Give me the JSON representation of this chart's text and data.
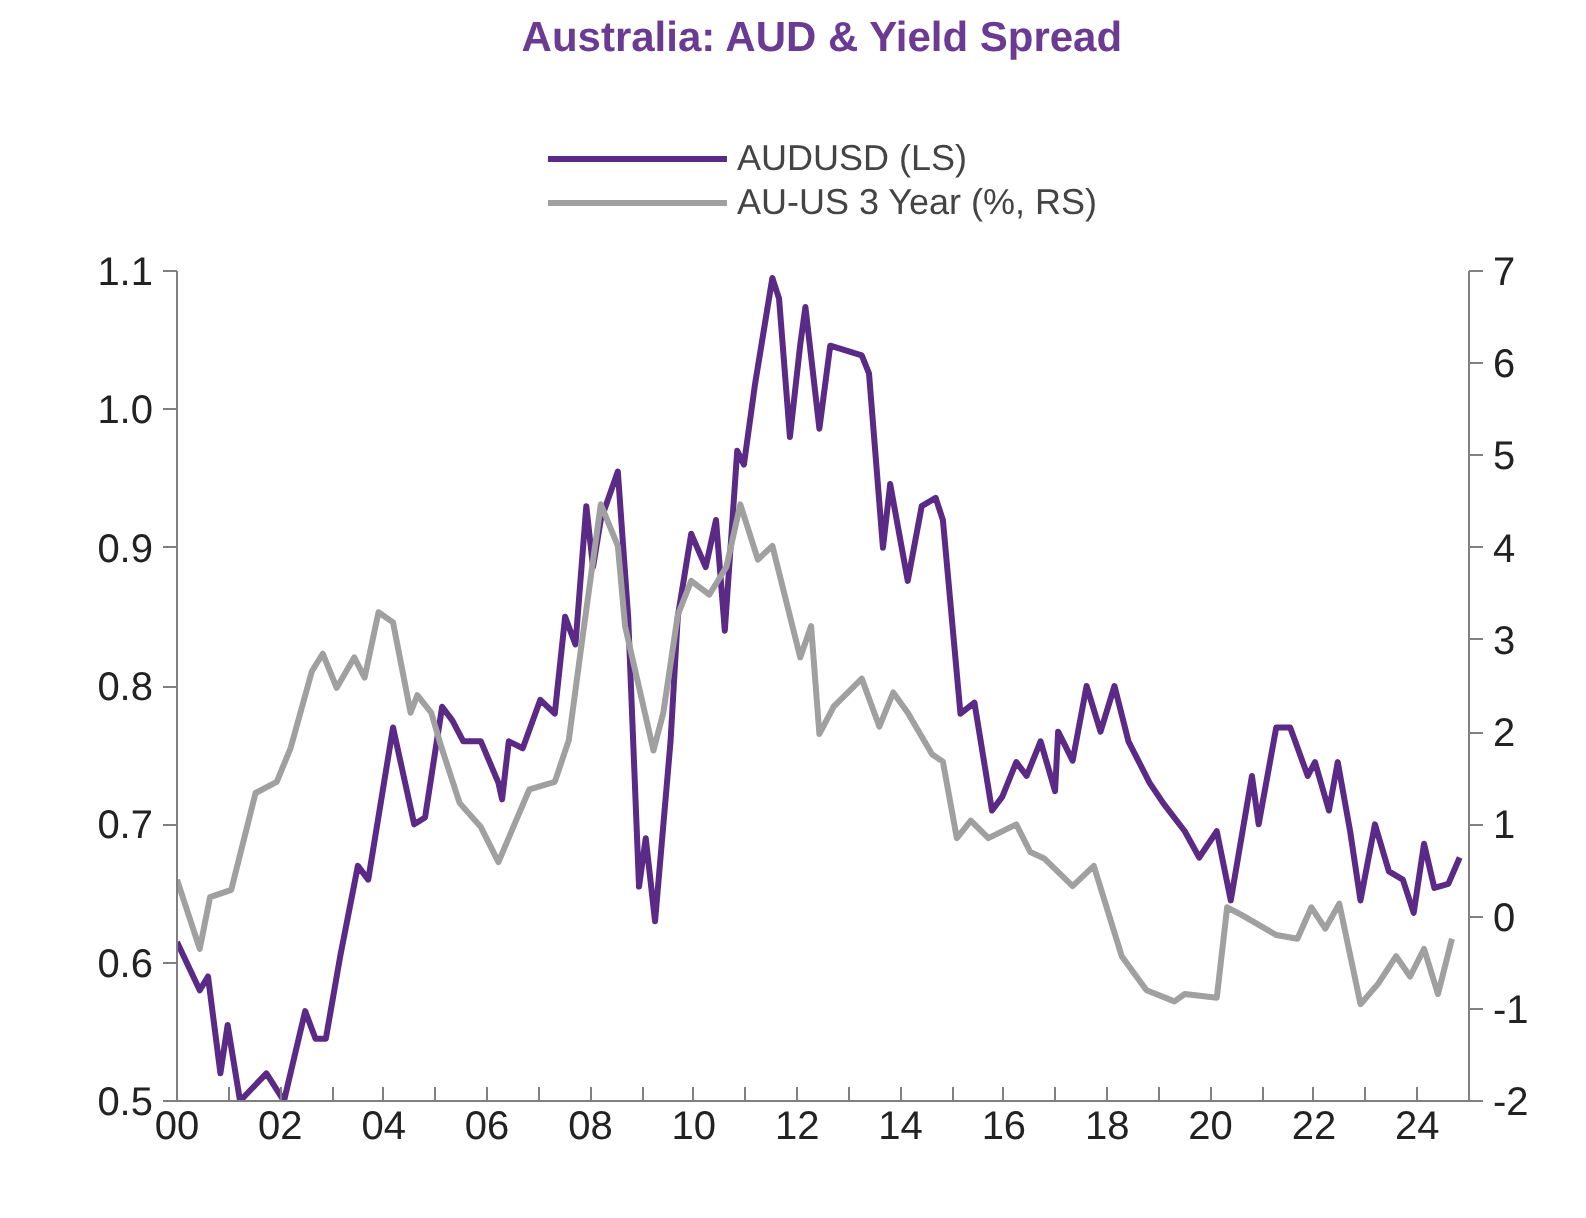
{
  "chart_data": {
    "type": "line",
    "title": "Australia: AUD & Yield Spread",
    "legend": "top",
    "grid": false,
    "xlim": [
      2000,
      2025
    ],
    "xticks": [
      {
        "value": 2000,
        "label": "00"
      },
      {
        "value": 2001,
        "label": null
      },
      {
        "value": 2002,
        "label": "02"
      },
      {
        "value": 2003,
        "label": null
      },
      {
        "value": 2004,
        "label": "04"
      },
      {
        "value": 2005,
        "label": null
      },
      {
        "value": 2006,
        "label": "06"
      },
      {
        "value": 2007,
        "label": null
      },
      {
        "value": 2008,
        "label": "08"
      },
      {
        "value": 2009,
        "label": null
      },
      {
        "value": 2010,
        "label": "10"
      },
      {
        "value": 2011,
        "label": null
      },
      {
        "value": 2012,
        "label": "12"
      },
      {
        "value": 2013,
        "label": null
      },
      {
        "value": 2014,
        "label": "14"
      },
      {
        "value": 2015,
        "label": null
      },
      {
        "value": 2016,
        "label": "16"
      },
      {
        "value": 2017,
        "label": null
      },
      {
        "value": 2018,
        "label": "18"
      },
      {
        "value": 2019,
        "label": null
      },
      {
        "value": 2020,
        "label": "20"
      },
      {
        "value": 2021,
        "label": null
      },
      {
        "value": 2022,
        "label": "22"
      },
      {
        "value": 2023,
        "label": null
      },
      {
        "value": 2024,
        "label": "24"
      }
    ],
    "ylim": [
      0.5,
      1.1
    ],
    "yticks": [
      {
        "value": 0.5,
        "label": "0.5"
      },
      {
        "value": 0.6,
        "label": "0.6"
      },
      {
        "value": 0.7,
        "label": "0.7"
      },
      {
        "value": 0.8,
        "label": "0.8"
      },
      {
        "value": 0.9,
        "label": "0.9"
      },
      {
        "value": 1.0,
        "label": "1.0"
      },
      {
        "value": 1.1,
        "label": "1.1"
      }
    ],
    "y2lim": [
      -2,
      7
    ],
    "y2ticks": [
      -2,
      -1,
      0,
      1,
      2,
      3,
      4,
      5,
      6,
      7
    ],
    "series": [
      {
        "name": "AUDUSD (LS)",
        "color": "#5b2a86",
        "x": [
          2000.0,
          2000.44,
          2000.6,
          2000.84,
          2000.98,
          2001.22,
          2001.73,
          2002.07,
          2002.48,
          2002.68,
          2002.88,
          2003.16,
          2003.5,
          2003.7,
          2004.18,
          2004.59,
          2004.8,
          2005.13,
          2005.33,
          2005.54,
          2005.88,
          2006.22,
          2006.29,
          2006.42,
          2006.69,
          2007.03,
          2007.31,
          2007.51,
          2007.71,
          2007.92,
          2008.05,
          2008.2,
          2008.53,
          2008.73,
          2008.94,
          2009.07,
          2009.25,
          2009.55,
          2009.69,
          2009.95,
          2010.23,
          2010.43,
          2010.6,
          2010.84,
          2010.97,
          2011.18,
          2011.52,
          2011.65,
          2011.86,
          2012.06,
          2012.16,
          2012.43,
          2012.64,
          2013.25,
          2013.39,
          2013.66,
          2013.8,
          2014.14,
          2014.41,
          2014.68,
          2014.82,
          2015.16,
          2015.43,
          2015.77,
          2015.97,
          2016.24,
          2016.44,
          2016.71,
          2016.99,
          2017.05,
          2017.33,
          2017.6,
          2017.87,
          2018.14,
          2018.41,
          2018.82,
          2019.09,
          2019.5,
          2019.78,
          2020.12,
          2020.39,
          2020.8,
          2020.93,
          2021.27,
          2021.54,
          2021.88,
          2022.02,
          2022.29,
          2022.46,
          2022.7,
          2022.9,
          2023.18,
          2023.45,
          2023.72,
          2023.93,
          2024.13,
          2024.33,
          2024.6,
          2024.82
        ],
        "values": [
          0.615,
          0.58,
          0.59,
          0.52,
          0.555,
          0.5,
          0.52,
          0.5,
          0.565,
          0.545,
          0.545,
          0.605,
          0.67,
          0.66,
          0.77,
          0.7,
          0.705,
          0.785,
          0.775,
          0.76,
          0.76,
          0.73,
          0.718,
          0.76,
          0.755,
          0.79,
          0.78,
          0.85,
          0.83,
          0.93,
          0.886,
          0.92,
          0.955,
          0.85,
          0.655,
          0.69,
          0.63,
          0.76,
          0.85,
          0.91,
          0.886,
          0.92,
          0.84,
          0.97,
          0.96,
          1.017,
          1.095,
          1.08,
          0.98,
          1.047,
          1.074,
          0.986,
          1.046,
          1.039,
          1.026,
          0.9,
          0.946,
          0.876,
          0.93,
          0.936,
          0.92,
          0.78,
          0.788,
          0.71,
          0.72,
          0.745,
          0.735,
          0.76,
          0.724,
          0.767,
          0.746,
          0.8,
          0.767,
          0.8,
          0.76,
          0.73,
          0.715,
          0.695,
          0.676,
          0.695,
          0.645,
          0.735,
          0.7,
          0.77,
          0.77,
          0.735,
          0.745,
          0.71,
          0.745,
          0.695,
          0.645,
          0.7,
          0.666,
          0.66,
          0.636,
          0.686,
          0.654,
          0.657,
          0.676
        ]
      },
      {
        "name": "AU-US 3 Year (%, RS)",
        "color": "#a0a0a0",
        "axis": "y2",
        "x": [
          2000.0,
          2000.44,
          2000.64,
          2001.05,
          2001.52,
          2001.93,
          2002.2,
          2002.61,
          2002.82,
          2003.09,
          2003.43,
          2003.63,
          2003.9,
          2004.18,
          2004.52,
          2004.65,
          2004.92,
          2005.12,
          2005.47,
          2005.88,
          2006.22,
          2006.56,
          2006.82,
          2007.31,
          2007.58,
          2007.85,
          2008.2,
          2008.53,
          2008.67,
          2009.22,
          2009.41,
          2009.69,
          2009.95,
          2010.3,
          2010.63,
          2010.9,
          2011.24,
          2011.52,
          2012.06,
          2012.27,
          2012.43,
          2012.71,
          2013.25,
          2013.59,
          2013.86,
          2014.14,
          2014.61,
          2014.82,
          2015.09,
          2015.36,
          2015.7,
          2016.24,
          2016.51,
          2016.78,
          2017.33,
          2017.74,
          2018.28,
          2018.76,
          2019.3,
          2019.5,
          2020.12,
          2020.32,
          2020.59,
          2021.27,
          2021.68,
          2021.95,
          2022.22,
          2022.49,
          2022.9,
          2023.24,
          2023.59,
          2023.86,
          2024.13,
          2024.4,
          2024.67
        ],
        "values": [
          0.4,
          -0.35,
          0.21,
          0.29,
          1.34,
          1.46,
          1.83,
          2.66,
          2.85,
          2.48,
          2.81,
          2.59,
          3.3,
          3.19,
          2.21,
          2.4,
          2.21,
          1.83,
          1.23,
          0.97,
          0.59,
          1.04,
          1.38,
          1.46,
          1.91,
          3.04,
          4.47,
          4.02,
          3.15,
          1.8,
          2.21,
          3.27,
          3.64,
          3.49,
          3.79,
          4.47,
          3.87,
          4.02,
          2.81,
          3.15,
          1.98,
          2.28,
          2.58,
          2.06,
          2.43,
          2.21,
          1.76,
          1.68,
          0.85,
          1.04,
          0.85,
          1.0,
          0.7,
          0.63,
          0.33,
          0.55,
          -0.43,
          -0.8,
          -0.92,
          -0.84,
          -0.88,
          0.1,
          0.02,
          -0.2,
          -0.24,
          0.1,
          -0.13,
          0.14,
          -0.95,
          -0.73,
          -0.43,
          -0.65,
          -0.35,
          -0.84,
          -0.24
        ]
      }
    ]
  }
}
